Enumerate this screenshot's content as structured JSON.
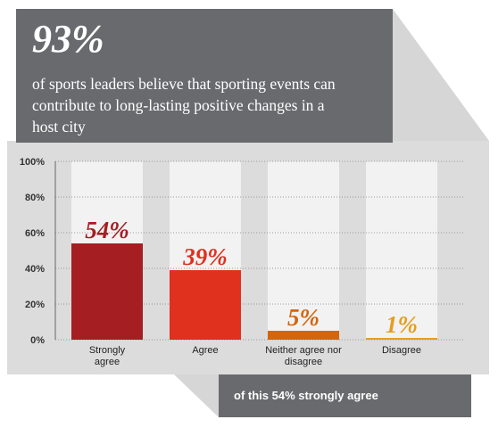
{
  "header": {
    "stat": "93%",
    "lines": [
      "of sports leaders believe that sporting events can",
      "contribute to long-lasting positive changes in a",
      "host city"
    ]
  },
  "chart_data": {
    "type": "bar",
    "categories": [
      "Strongly agree",
      "Agree",
      "Neither agree nor disagree",
      "Disagree"
    ],
    "values": [
      54,
      39,
      5,
      1
    ],
    "value_labels": [
      "54%",
      "39%",
      "5%",
      "1%"
    ],
    "colors": [
      "#a41e22",
      "#e0301e",
      "#d4650b",
      "#e69d1e"
    ],
    "ylim": [
      0,
      100
    ],
    "yticks": [
      {
        "value": 0,
        "label": "0%"
      },
      {
        "value": 20,
        "label": "20%"
      },
      {
        "value": 40,
        "label": "40%"
      },
      {
        "value": 60,
        "label": "60%"
      },
      {
        "value": 80,
        "label": "80%"
      },
      {
        "value": 100,
        "label": "100%"
      }
    ],
    "grid": true
  },
  "note": "of this 54% strongly agree"
}
